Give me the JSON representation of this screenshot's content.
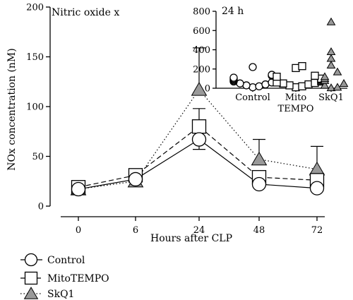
{
  "chart_data": [
    {
      "type": "line",
      "panel_label": "Nitric oxide x",
      "xlabel": "Hours after CLP",
      "ylabel": "NOx concentration (nM)",
      "x": [
        0,
        6,
        24,
        48,
        72
      ],
      "x_tick_labels": [
        "0",
        "6",
        "24",
        "48",
        "72"
      ],
      "y_ticks": [
        0,
        50,
        100,
        150,
        200
      ],
      "ylim": [
        0,
        200
      ],
      "series": [
        {
          "name": "Control",
          "marker": "circle",
          "line": "solid",
          "values": [
            17,
            27,
            67,
            22,
            18
          ],
          "error_up": [
            0,
            0,
            0,
            0,
            0
          ],
          "error_down": [
            0,
            0,
            10,
            0,
            0
          ]
        },
        {
          "name": "MitoTEMPO",
          "marker": "square",
          "line": "dashed",
          "values": [
            19,
            31,
            80,
            29,
            26
          ],
          "error_up": [
            0,
            0,
            18,
            0,
            0
          ],
          "error_down": [
            0,
            0,
            0,
            0,
            0
          ]
        },
        {
          "name": "SkQ1",
          "marker": "triangle",
          "line": "dotted",
          "values": [
            17,
            25,
            117,
            47,
            37
          ],
          "error_up": [
            0,
            0,
            42,
            20,
            23
          ],
          "error_down": [
            0,
            0,
            0,
            0,
            0
          ]
        }
      ],
      "legend": [
        "Control",
        "MitoTEMPO",
        "SkQ1"
      ],
      "legend_placement": "bottom-left",
      "colors": {
        "triangle_fill": "#999999"
      }
    },
    {
      "type": "scatter",
      "inset_label": "24 h",
      "categories": [
        "Control",
        "Mito\nTEMPO",
        "SkQ1"
      ],
      "category_lines": [
        [
          "Control"
        ],
        [
          "Mito",
          "TEMPO"
        ],
        [
          "SkQ1"
        ]
      ],
      "y_ticks": [
        0,
        200,
        400,
        600,
        800
      ],
      "ylim": [
        0,
        800
      ],
      "series": [
        {
          "name": "Control",
          "marker": "circle",
          "values": [
            10,
            20,
            30,
            40,
            50,
            60,
            70,
            80,
            90,
            100,
            110,
            130,
            140,
            220
          ]
        },
        {
          "name": "MitoTEMPO",
          "marker": "square",
          "values": [
            10,
            20,
            30,
            40,
            50,
            55,
            60,
            70,
            80,
            90,
            100,
            120,
            130,
            210,
            230
          ]
        },
        {
          "name": "SkQ1",
          "marker": "triangle",
          "values": [
            5,
            10,
            30,
            50,
            80,
            100,
            120,
            170,
            240,
            310,
            380,
            690
          ]
        }
      ]
    }
  ]
}
